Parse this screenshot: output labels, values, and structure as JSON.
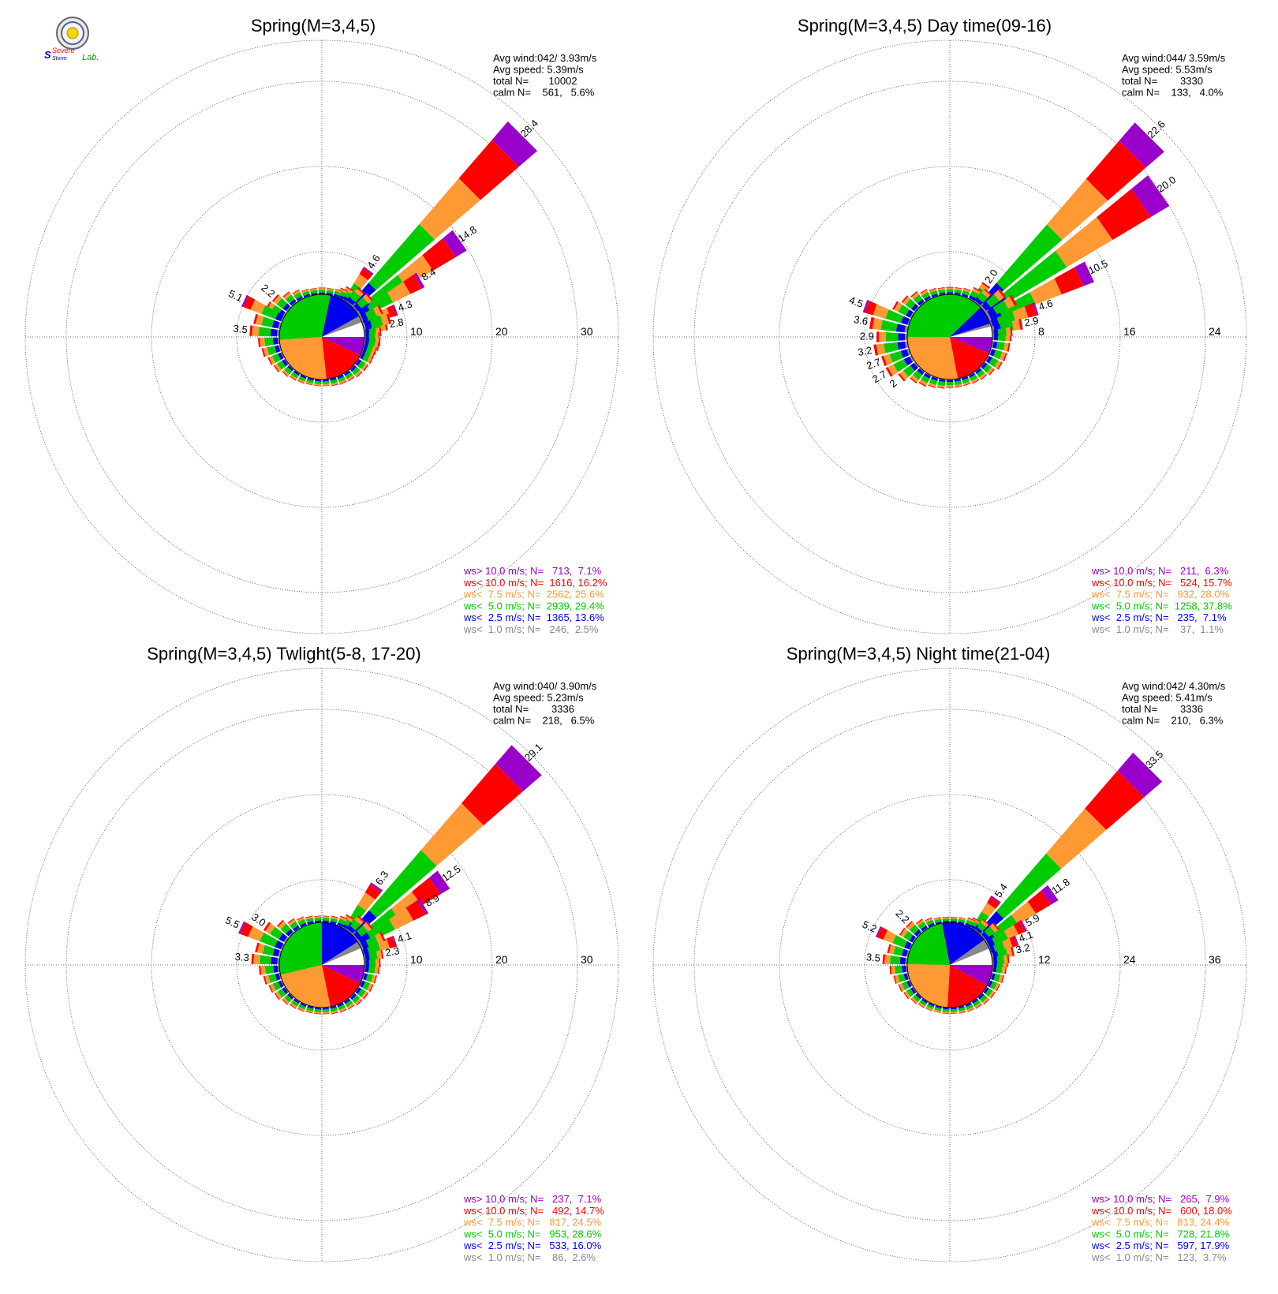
{
  "logo": {
    "name": "Severe Storm Lab.",
    "top_text": "Severe",
    "bottom_text": "Storm",
    "suffix": "Lab."
  },
  "speed_colors": [
    "#888888",
    "#0000ee",
    "#00cc00",
    "#ff9933",
    "#ff0000",
    "#9900cc"
  ],
  "chart_data": [
    {
      "type": "wind-rose",
      "title": "Spring(M=3,4,5)",
      "rings": [
        10,
        20,
        30
      ],
      "stats": [
        "Avg wind:042/ 3.93m/s",
        "Avg speed: 5.39m/s",
        "total N=       10002",
        "calm N=    561,   5.6%"
      ],
      "legend": [
        "ws> 10.0 m/s; N=   713,  7.1%",
        "ws< 10.0 m/s; N=  1616, 16.2%",
        "ws<  7.5 m/s; N=  2562, 25.6%",
        "ws<  5.0 m/s; N=  2939, 29.4%",
        "ws<  2.5 m/s; N=  1365, 13.6%",
        "ws<  1.0 m/s; N=   246,  2.5%"
      ],
      "pie": [
        2.5,
        13.6,
        29.4,
        25.6,
        16.2,
        7.1
      ],
      "petals": [
        {
          "dir": 45,
          "total": 28.4,
          "label": "28.4"
        },
        {
          "dir": 55,
          "total": 14.8,
          "label": "14.8"
        },
        {
          "dir": 35,
          "total": 4.6,
          "label": "4.6"
        },
        {
          "dir": 60,
          "total": 8.4,
          "label": "8.4"
        },
        {
          "dir": 70,
          "total": 4.3,
          "label": "4.3"
        },
        {
          "dir": 80,
          "total": 2.8,
          "label": "2.8"
        },
        {
          "dir": 75,
          "total": 3.3
        },
        {
          "dir": 65,
          "total": 2.7
        },
        {
          "dir": 85,
          "total": 2.0
        },
        {
          "dir": 90,
          "total": 1.8
        },
        {
          "dir": 95,
          "total": 1.9
        },
        {
          "dir": 100,
          "total": 1.8
        },
        {
          "dir": 105,
          "total": 1.6
        },
        {
          "dir": 110,
          "total": 1.5
        },
        {
          "dir": 40,
          "total": 2.2
        },
        {
          "dir": 50,
          "total": 2.4
        },
        {
          "dir": 30,
          "total": 1.6
        },
        {
          "dir": 25,
          "total": 1.2
        },
        {
          "dir": 20,
          "total": 0.9
        },
        {
          "dir": 10,
          "total": 0.8
        },
        {
          "dir": 0,
          "total": 0.8
        },
        {
          "dir": 350,
          "total": 0.8
        },
        {
          "dir": 340,
          "total": 0.9
        },
        {
          "dir": 330,
          "total": 1.2
        },
        {
          "dir": 320,
          "total": 1.6
        },
        {
          "dir": 310,
          "total": 2.2,
          "label": "2.2"
        },
        {
          "dir": 300,
          "total": 2.4
        },
        {
          "dir": 295,
          "total": 5.1,
          "label": "5.1"
        },
        {
          "dir": 285,
          "total": 3.2
        },
        {
          "dir": 275,
          "total": 3.5,
          "label": "3.5"
        },
        {
          "dir": 265,
          "total": 2.5
        },
        {
          "dir": 255,
          "total": 2.2
        },
        {
          "dir": 245,
          "total": 1.8
        },
        {
          "dir": 235,
          "total": 1.6
        },
        {
          "dir": 225,
          "total": 1.2
        },
        {
          "dir": 215,
          "total": 1.0
        },
        {
          "dir": 205,
          "total": 0.9
        },
        {
          "dir": 195,
          "total": 0.8
        },
        {
          "dir": 185,
          "total": 0.8
        },
        {
          "dir": 175,
          "total": 0.8
        },
        {
          "dir": 165,
          "total": 0.9
        },
        {
          "dir": 155,
          "total": 1.0
        },
        {
          "dir": 145,
          "total": 1.1
        },
        {
          "dir": 135,
          "total": 1.3
        },
        {
          "dir": 125,
          "total": 1.4
        },
        {
          "dir": 115,
          "total": 1.5
        }
      ]
    },
    {
      "type": "wind-rose",
      "title": "Spring(M=3,4,5) Day time(09-16)",
      "rings": [
        8,
        16,
        24
      ],
      "stats": [
        "Avg wind:044/ 3.59m/s",
        "Avg speed: 5.53m/s",
        "total N=        3330",
        "calm N=    133,   4.0%"
      ],
      "legend": [
        "ws> 10.0 m/s; N=   211,  6.3%",
        "ws< 10.0 m/s; N=   524, 15.7%",
        "ws<  7.5 m/s; N=   932, 28.0%",
        "ws<  5.0 m/s; N=  1258, 37.8%",
        "ws<  2.5 m/s; N=   235,  7.1%",
        "ws<  1.0 m/s; N=    37,  1.1%"
      ],
      "pie": [
        1.1,
        7.1,
        37.8,
        28.0,
        15.7,
        6.3
      ],
      "petals": [
        {
          "dir": 45,
          "total": 22.6,
          "label": "22.6"
        },
        {
          "dir": 55,
          "total": 20.0,
          "label": "20.0"
        },
        {
          "dir": 65,
          "total": 10.5,
          "label": "10.5"
        },
        {
          "dir": 35,
          "total": 2.0,
          "label": "2.0"
        },
        {
          "dir": 72,
          "total": 4.6,
          "label": "4.6"
        },
        {
          "dir": 80,
          "total": 2.9,
          "label": "2.9"
        },
        {
          "dir": 60,
          "total": 3.0
        },
        {
          "dir": 50,
          "total": 2.5
        },
        {
          "dir": 40,
          "total": 1.6
        },
        {
          "dir": 30,
          "total": 1.2
        },
        {
          "dir": 20,
          "total": 0.8
        },
        {
          "dir": 10,
          "total": 0.7
        },
        {
          "dir": 0,
          "total": 0.7
        },
        {
          "dir": 350,
          "total": 0.7
        },
        {
          "dir": 340,
          "total": 0.8
        },
        {
          "dir": 330,
          "total": 1.0
        },
        {
          "dir": 320,
          "total": 1.3
        },
        {
          "dir": 310,
          "total": 1.6
        },
        {
          "dir": 300,
          "total": 2.0
        },
        {
          "dir": 290,
          "total": 4.5,
          "label": "4.5"
        },
        {
          "dir": 280,
          "total": 3.6,
          "label": "3.6"
        },
        {
          "dir": 270,
          "total": 2.9,
          "label": "2.9"
        },
        {
          "dir": 260,
          "total": 3.2,
          "label": "3.2"
        },
        {
          "dir": 250,
          "total": 2.7,
          "label": "2.7"
        },
        {
          "dir": 240,
          "total": 2.7,
          "label": "2.7"
        },
        {
          "dir": 230,
          "total": 2.0,
          "label": "2"
        },
        {
          "dir": 220,
          "total": 1.4
        },
        {
          "dir": 210,
          "total": 1.2
        },
        {
          "dir": 200,
          "total": 1.0
        },
        {
          "dir": 190,
          "total": 0.9
        },
        {
          "dir": 180,
          "total": 0.8
        },
        {
          "dir": 170,
          "total": 0.8
        },
        {
          "dir": 160,
          "total": 0.8
        },
        {
          "dir": 150,
          "total": 0.9
        },
        {
          "dir": 140,
          "total": 1.0
        },
        {
          "dir": 130,
          "total": 1.2
        },
        {
          "dir": 120,
          "total": 1.5
        },
        {
          "dir": 110,
          "total": 1.6
        },
        {
          "dir": 100,
          "total": 1.7
        },
        {
          "dir": 90,
          "total": 1.8
        },
        {
          "dir": 85,
          "total": 1.9
        }
      ]
    },
    {
      "type": "wind-rose",
      "title": "Spring(M=3,4,5) Twlight(5-8, 17-20)",
      "rings": [
        10,
        20,
        30
      ],
      "stats": [
        "Avg wind:040/ 3.90m/s",
        "Avg speed: 5.23m/s",
        "total N=        3336",
        "calm N=    218,   6.5%"
      ],
      "legend": [
        "ws> 10.0 m/s; N=   237,  7.1%",
        "ws< 10.0 m/s; N=   492, 14.7%",
        "ws<  7.5 m/s; N=   817, 24.5%",
        "ws<  5.0 m/s; N=   953, 28.6%",
        "ws<  2.5 m/s; N=   533, 16.0%",
        "ws<  1.0 m/s; N=    86,  2.6%"
      ],
      "pie": [
        2.6,
        16.0,
        28.6,
        24.5,
        14.7,
        7.1
      ],
      "petals": [
        {
          "dir": 45,
          "total": 29.1,
          "label": "29.1"
        },
        {
          "dir": 55,
          "total": 12.5,
          "label": "12.5"
        },
        {
          "dir": 35,
          "total": 6.3,
          "label": "6.3"
        },
        {
          "dir": 60,
          "total": 8.9,
          "label": "8.9"
        },
        {
          "dir": 72,
          "total": 4.1,
          "label": "4.1"
        },
        {
          "dir": 80,
          "total": 2.3,
          "label": "2.3"
        },
        {
          "dir": 65,
          "total": 3.0
        },
        {
          "dir": 50,
          "total": 2.4
        },
        {
          "dir": 40,
          "total": 2.2
        },
        {
          "dir": 30,
          "total": 1.6
        },
        {
          "dir": 25,
          "total": 1.2
        },
        {
          "dir": 15,
          "total": 0.9
        },
        {
          "dir": 5,
          "total": 0.8
        },
        {
          "dir": 355,
          "total": 0.8
        },
        {
          "dir": 345,
          "total": 0.9
        },
        {
          "dir": 335,
          "total": 1.1
        },
        {
          "dir": 325,
          "total": 1.4
        },
        {
          "dir": 315,
          "total": 2.0
        },
        {
          "dir": 305,
          "total": 3.0,
          "label": "3.0"
        },
        {
          "dir": 295,
          "total": 5.5,
          "label": "5.5"
        },
        {
          "dir": 285,
          "total": 3.0
        },
        {
          "dir": 275,
          "total": 3.3,
          "label": "3.3"
        },
        {
          "dir": 265,
          "total": 2.4
        },
        {
          "dir": 255,
          "total": 2.0
        },
        {
          "dir": 245,
          "total": 1.7
        },
        {
          "dir": 235,
          "total": 1.5
        },
        {
          "dir": 225,
          "total": 1.2
        },
        {
          "dir": 215,
          "total": 1.0
        },
        {
          "dir": 205,
          "total": 0.9
        },
        {
          "dir": 195,
          "total": 0.8
        },
        {
          "dir": 185,
          "total": 0.8
        },
        {
          "dir": 175,
          "total": 0.8
        },
        {
          "dir": 165,
          "total": 0.9
        },
        {
          "dir": 155,
          "total": 1.0
        },
        {
          "dir": 145,
          "total": 1.1
        },
        {
          "dir": 135,
          "total": 1.3
        },
        {
          "dir": 125,
          "total": 1.4
        },
        {
          "dir": 115,
          "total": 1.5
        },
        {
          "dir": 105,
          "total": 1.6
        },
        {
          "dir": 95,
          "total": 1.8
        },
        {
          "dir": 88,
          "total": 1.9
        }
      ]
    },
    {
      "type": "wind-rose",
      "title": "Spring(M=3,4,5) Night time(21-04)",
      "rings": [
        12,
        24,
        36
      ],
      "stats": [
        "Avg wind:042/ 4.30m/s",
        "Avg speed: 5.41m/s",
        "total N=        3336",
        "calm N=    210,   6.3%"
      ],
      "legend": [
        "ws> 10.0 m/s; N=   265,  7.9%",
        "ws< 10.0 m/s; N=   600, 18.0%",
        "ws<  7.5 m/s; N=   813, 24.4%",
        "ws<  5.0 m/s; N=   728, 21.8%",
        "ws<  2.5 m/s; N=   597, 17.9%",
        "ws<  1.0 m/s; N=   123,  3.7%"
      ],
      "pie": [
        3.7,
        17.9,
        21.8,
        24.4,
        18.0,
        7.9
      ],
      "petals": [
        {
          "dir": 45,
          "total": 33.5,
          "label": "33.5"
        },
        {
          "dir": 55,
          "total": 11.8,
          "label": "11.8"
        },
        {
          "dir": 35,
          "total": 5.4,
          "label": "5.4"
        },
        {
          "dir": 62,
          "total": 5.9,
          "label": "5.9"
        },
        {
          "dir": 70,
          "total": 4.1,
          "label": "4.1"
        },
        {
          "dir": 78,
          "total": 3.2,
          "label": "3.2"
        },
        {
          "dir": 50,
          "total": 2.6
        },
        {
          "dir": 40,
          "total": 2.0
        },
        {
          "dir": 30,
          "total": 1.5
        },
        {
          "dir": 25,
          "total": 1.2
        },
        {
          "dir": 15,
          "total": 0.9
        },
        {
          "dir": 5,
          "total": 0.8
        },
        {
          "dir": 355,
          "total": 0.8
        },
        {
          "dir": 345,
          "total": 0.9
        },
        {
          "dir": 335,
          "total": 1.2
        },
        {
          "dir": 325,
          "total": 1.6
        },
        {
          "dir": 315,
          "total": 2.2,
          "label": "2.2"
        },
        {
          "dir": 305,
          "total": 2.3
        },
        {
          "dir": 295,
          "total": 5.2,
          "label": "5.2"
        },
        {
          "dir": 285,
          "total": 3.0
        },
        {
          "dir": 275,
          "total": 3.5,
          "label": "3.5"
        },
        {
          "dir": 265,
          "total": 2.5
        },
        {
          "dir": 255,
          "total": 2.1
        },
        {
          "dir": 245,
          "total": 1.8
        },
        {
          "dir": 235,
          "total": 1.6
        },
        {
          "dir": 225,
          "total": 1.3
        },
        {
          "dir": 215,
          "total": 1.1
        },
        {
          "dir": 205,
          "total": 1.0
        },
        {
          "dir": 195,
          "total": 0.9
        },
        {
          "dir": 185,
          "total": 0.9
        },
        {
          "dir": 175,
          "total": 0.9
        },
        {
          "dir": 165,
          "total": 1.0
        },
        {
          "dir": 155,
          "total": 1.1
        },
        {
          "dir": 145,
          "total": 1.2
        },
        {
          "dir": 135,
          "total": 1.4
        },
        {
          "dir": 125,
          "total": 1.5
        },
        {
          "dir": 115,
          "total": 1.6
        },
        {
          "dir": 105,
          "total": 1.8
        },
        {
          "dir": 95,
          "total": 2.0
        },
        {
          "dir": 88,
          "total": 2.2
        },
        {
          "dir": 84,
          "total": 2.4
        }
      ]
    }
  ]
}
